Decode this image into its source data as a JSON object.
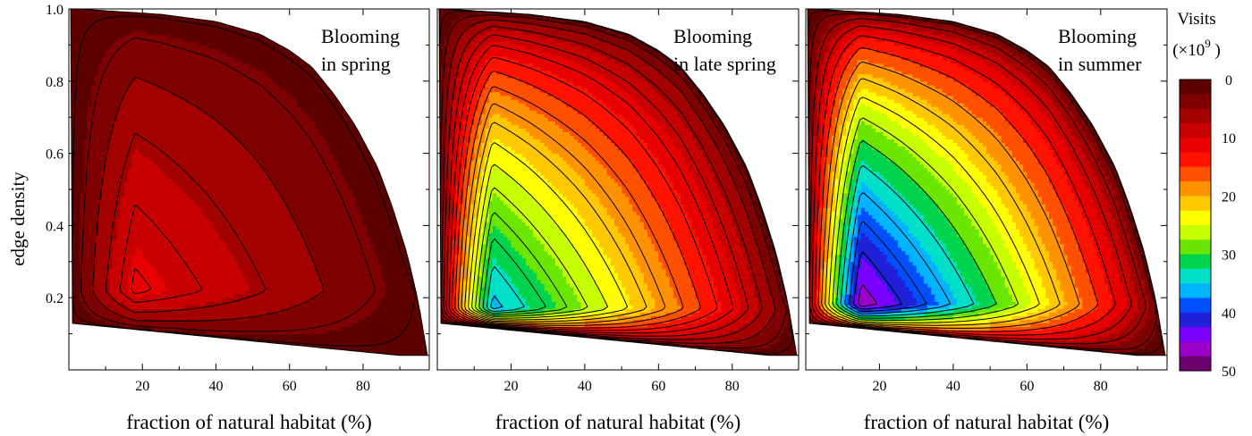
{
  "chart_data": [
    {
      "type": "heatmap",
      "title": "Blooming in spring",
      "title_lines": [
        "Blooming",
        "in spring"
      ],
      "xlabel": "fraction of natural habitat (%)",
      "ylabel": "edge density",
      "xlim": [
        0,
        98
      ],
      "ylim": [
        0,
        1.0
      ],
      "x_ticks": [
        20,
        40,
        60,
        80
      ],
      "y_ticks": [
        0.2,
        0.4,
        0.6,
        0.8,
        1.0
      ],
      "y_tick_labels": [
        "0.2",
        "0.4",
        "0.6",
        "0.8",
        "1.0"
      ],
      "peak": {
        "x": 18,
        "y": 0.22,
        "value": 11
      },
      "edge_value": 0,
      "contour_levels": [
        1,
        3,
        5,
        7,
        9,
        10.5
      ]
    },
    {
      "type": "heatmap",
      "title": "Blooming in late spring",
      "title_lines": [
        "Blooming",
        "in late spring"
      ],
      "xlabel": "fraction of natural habitat (%)",
      "ylabel": "",
      "xlim": [
        0,
        98
      ],
      "ylim": [
        0,
        1.0
      ],
      "x_ticks": [
        20,
        40,
        60,
        80
      ],
      "peak": {
        "x": 15,
        "y": 0.17,
        "value": 36
      },
      "edge_value": 0,
      "contour_levels": [
        1,
        3,
        5,
        7,
        9,
        11,
        13,
        15,
        17,
        19,
        21,
        23,
        25,
        27,
        29,
        31,
        33,
        35
      ]
    },
    {
      "type": "heatmap",
      "title": "Blooming in summer",
      "title_lines": [
        "Blooming",
        "in summer"
      ],
      "xlabel": "fraction of natural habitat (%)",
      "ylabel": "",
      "xlim": [
        0,
        98
      ],
      "ylim": [
        0,
        1.0
      ],
      "x_ticks": [
        20,
        40,
        60,
        80
      ],
      "peak": {
        "x": 15,
        "y": 0.18,
        "value": 47
      },
      "edge_value": 0,
      "contour_levels": [
        1,
        3,
        6,
        9,
        12,
        15,
        18,
        21,
        24,
        27,
        30,
        33,
        36,
        39,
        42,
        45
      ]
    }
  ],
  "colorbar": {
    "title": "Visits",
    "unit_prefix": "(×10",
    "unit_exp": "9",
    "unit_suffix": " )",
    "ticks": [
      0,
      10,
      20,
      30,
      40,
      50
    ],
    "tick_labels": [
      "0",
      "10",
      "20",
      "30",
      "40",
      "50"
    ],
    "range": [
      0,
      50
    ],
    "colors": [
      "#5c0000",
      "#7e0000",
      "#a30000",
      "#c80000",
      "#e80000",
      "#ff1200",
      "#ff5000",
      "#ff9200",
      "#ffc800",
      "#ffff00",
      "#c8ff00",
      "#6ae600",
      "#00d44c",
      "#00e0c8",
      "#00b4ff",
      "#0050ff",
      "#2020d8",
      "#7a00ff",
      "#9a00c8",
      "#6a0070"
    ]
  }
}
